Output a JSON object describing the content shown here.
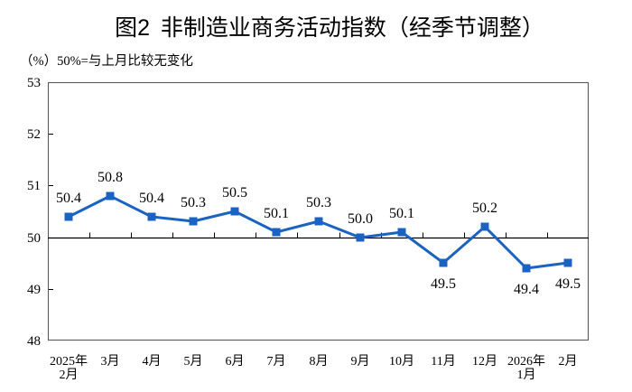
{
  "chart_data": {
    "type": "line",
    "title": "图2 非制造业商务活动指数（经季节调整）",
    "unit_note": "（%）50%=与上月比较无变化",
    "categories": [
      "2025年\n2月",
      "3月",
      "4月",
      "5月",
      "6月",
      "7月",
      "8月",
      "9月",
      "10月",
      "11月",
      "12月",
      "2026年\n1月",
      "2月"
    ],
    "values": [
      50.4,
      50.8,
      50.4,
      50.3,
      50.5,
      50.1,
      50.3,
      50.0,
      50.1,
      49.5,
      50.2,
      49.4,
      49.5
    ],
    "ylim": [
      48,
      53
    ],
    "yticks": [
      48,
      49,
      50,
      51,
      52,
      53
    ],
    "reference_line": 50,
    "legend": null,
    "grid": "off",
    "line_color": "#1b63c1",
    "axis_color": "#000000",
    "border_color": "#595959",
    "label_color": "#000000"
  }
}
